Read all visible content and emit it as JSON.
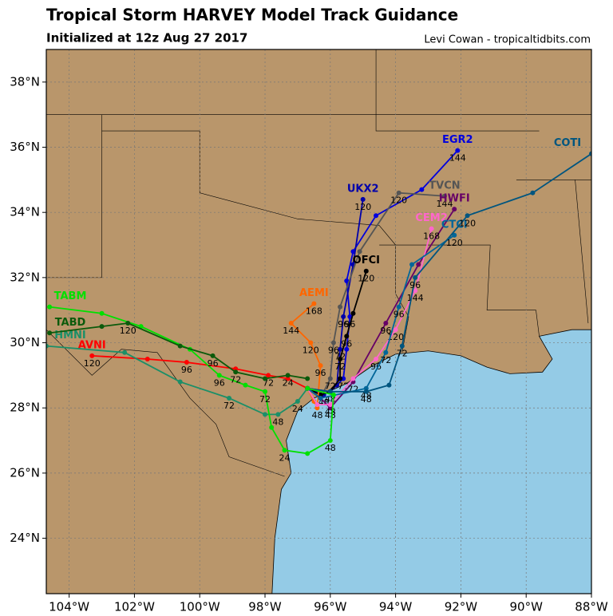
{
  "chart_data": {
    "type": "track-map",
    "title": "Tropical Storm HARVEY Model Track Guidance",
    "subtitle": "Initialized at 12z Aug 27 2017",
    "credit": "Levi Cowan - tropicaltidbits.com",
    "xlim": [
      -104.7,
      -88
    ],
    "ylim": [
      22.3,
      39
    ],
    "xticks": [
      {
        "value": -104,
        "label": "104°W"
      },
      {
        "value": -102,
        "label": "102°W"
      },
      {
        "value": -100,
        "label": "100°W"
      },
      {
        "value": -98,
        "label": "98°W"
      },
      {
        "value": -96,
        "label": "96°W"
      },
      {
        "value": -94,
        "label": "94°W"
      },
      {
        "value": -92,
        "label": "92°W"
      },
      {
        "value": -90,
        "label": "90°W"
      },
      {
        "value": -88,
        "label": "88°W"
      }
    ],
    "yticks": [
      {
        "value": 24,
        "label": "24°N"
      },
      {
        "value": 26,
        "label": "26°N"
      },
      {
        "value": 28,
        "label": "28°N"
      },
      {
        "value": 30,
        "label": "30°N"
      },
      {
        "value": 32,
        "label": "32°N"
      },
      {
        "value": 34,
        "label": "34°N"
      },
      {
        "value": 36,
        "label": "36°N"
      },
      {
        "value": 38,
        "label": "38°N"
      }
    ],
    "grid": true,
    "tracks": [
      {
        "name": "EGR2",
        "color": "#0000dd",
        "lon": [
          -96.7,
          -96.0,
          -95.6,
          -95.5,
          -95.4,
          -95.5,
          -95.3,
          -94.6,
          -93.2,
          -92.1
        ],
        "lat": [
          28.6,
          28.5,
          28.9,
          29.8,
          30.8,
          31.9,
          32.8,
          33.9,
          34.7,
          35.9
        ],
        "hour_labels": [
          null,
          null,
          72,
          null,
          96,
          null,
          null,
          null,
          null,
          144
        ]
      },
      {
        "name": "UKX2",
        "color": "#0000aa",
        "lon": [
          -96.7,
          -96.2,
          -95.8,
          -95.7,
          -95.6,
          -95.3,
          -95.0
        ],
        "lat": [
          28.6,
          28.4,
          28.7,
          29.8,
          30.8,
          32.4,
          34.4
        ],
        "hour_labels": [
          null,
          48,
          null,
          72,
          96,
          null,
          120
        ]
      },
      {
        "name": "TVCN",
        "color": "#555555",
        "lon": [
          -96.7,
          -96.3,
          -96.0,
          -95.9,
          -95.7,
          -95.1,
          -93.9,
          -92.5
        ],
        "lat": [
          28.6,
          28.3,
          28.9,
          30.0,
          31.1,
          32.8,
          34.6,
          34.5
        ],
        "hour_labels": [
          null,
          null,
          72,
          96,
          null,
          null,
          120,
          144
        ]
      },
      {
        "name": "OFCI",
        "color": "#000000",
        "lon": [
          -96.7,
          -96.3,
          -96.0,
          -95.7,
          -95.7,
          -95.5,
          -95.3,
          -94.9
        ],
        "lat": [
          28.6,
          28.4,
          28.5,
          28.9,
          29.5,
          30.2,
          30.9,
          32.2
        ],
        "hour_labels": [
          null,
          null,
          48,
          null,
          72,
          96,
          null,
          120
        ]
      },
      {
        "name": "AEMI",
        "color": "#ff6600",
        "lon": [
          -96.7,
          -96.5,
          -96.4,
          -96.3,
          -96.6,
          -97.2,
          -96.5
        ],
        "lat": [
          28.6,
          28.2,
          28.0,
          29.3,
          30.0,
          30.6,
          31.2
        ],
        "hour_labels": [
          null,
          null,
          48,
          96,
          120,
          144,
          168
        ]
      },
      {
        "name": "HWFI",
        "color": "#660066",
        "lon": [
          -96.7,
          -96.3,
          -96.0,
          -95.3,
          -94.3,
          -93.3,
          -92.2
        ],
        "lat": [
          28.6,
          28.3,
          28.0,
          28.8,
          30.6,
          32.4,
          34.1
        ],
        "hour_labels": [
          null,
          null,
          48,
          72,
          96,
          null,
          null
        ]
      },
      {
        "name": "CEM2",
        "color": "#ff66cc",
        "lon": [
          -96.7,
          -96.4,
          -96.0,
          -95.3,
          -94.6,
          -94.0,
          -93.4,
          -92.9
        ],
        "lat": [
          28.6,
          28.1,
          28.1,
          28.9,
          29.5,
          30.4,
          31.6,
          33.5
        ],
        "hour_labels": [
          null,
          null,
          48,
          null,
          96,
          120,
          144,
          168
        ]
      },
      {
        "name": "CTCI",
        "color": "#006699",
        "lon": [
          -96.7,
          -96.3,
          -94.9,
          -94.3,
          -93.9,
          -93.5,
          -92.2
        ],
        "lat": [
          28.6,
          28.3,
          28.6,
          29.7,
          31.1,
          32.4,
          33.3
        ],
        "hour_labels": [
          null,
          null,
          48,
          72,
          96,
          null,
          120
        ]
      },
      {
        "name": "COTI",
        "color": "#00557f",
        "lon": [
          -96.7,
          -96.0,
          -94.9,
          -94.2,
          -93.8,
          -93.4,
          -91.8,
          -89.8,
          -88.0
        ],
        "lat": [
          28.6,
          28.5,
          28.5,
          28.7,
          29.9,
          32.0,
          33.9,
          34.6,
          35.8
        ],
        "hour_labels": [
          null,
          null,
          48,
          null,
          72,
          96,
          120,
          null,
          null
        ]
      },
      {
        "name": "AVNI",
        "color": "#ff0000",
        "lon": [
          -96.7,
          -97.3,
          -97.9,
          -98.9,
          -100.4,
          -101.6,
          -103.3
        ],
        "lat": [
          28.6,
          28.9,
          29.0,
          29.2,
          29.4,
          29.5,
          29.6
        ],
        "hour_labels": [
          null,
          null,
          72,
          null,
          96,
          null,
          120
        ]
      },
      {
        "name": "HMNI",
        "color": "#1b8f68",
        "lon": [
          -96.7,
          -97.0,
          -97.6,
          -98.0,
          -99.1,
          -100.6,
          -102.3,
          -104.7
        ],
        "lat": [
          28.6,
          28.2,
          27.8,
          27.8,
          28.3,
          28.8,
          29.7,
          29.9
        ],
        "hour_labels": [
          null,
          24,
          48,
          null,
          72,
          null,
          null,
          null
        ]
      },
      {
        "name": "TABM",
        "color": "#00e000",
        "lon": [
          -96.7,
          -95.9,
          -96.0,
          -96.7,
          -97.4,
          -97.8,
          -98.0,
          -98.6,
          -99.4,
          -100.3,
          -101.8,
          -103.0,
          -104.6
        ],
        "lat": [
          28.6,
          28.4,
          27.0,
          26.6,
          26.7,
          27.4,
          28.5,
          28.7,
          29.0,
          29.8,
          30.5,
          30.9,
          31.1
        ],
        "hour_labels": [
          null,
          null,
          48,
          null,
          24,
          null,
          72,
          null,
          96,
          null,
          null,
          null,
          null
        ]
      },
      {
        "name": "TABD",
        "color": "#0b5a0b",
        "lon": [
          -96.7,
          -97.3,
          -98.0,
          -98.9,
          -99.6,
          -100.6,
          -102.2,
          -103.0,
          -104.6
        ],
        "lat": [
          28.9,
          29.0,
          28.9,
          29.1,
          29.6,
          29.9,
          30.6,
          30.5,
          30.3
        ],
        "hour_labels": [
          null,
          24,
          null,
          72,
          96,
          null,
          120,
          null,
          null
        ]
      }
    ]
  }
}
